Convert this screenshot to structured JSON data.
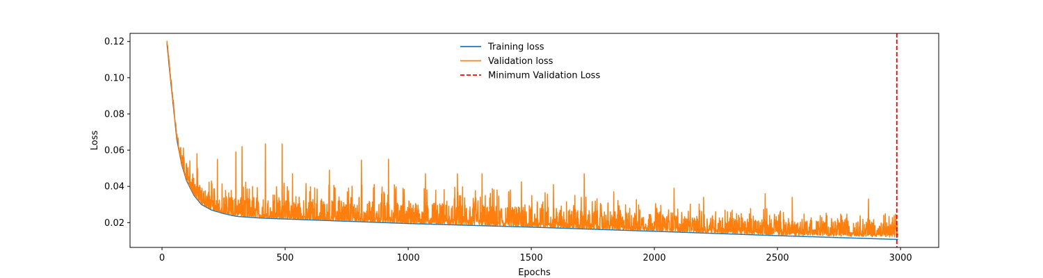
{
  "chart_data": {
    "type": "line",
    "xlabel": "Epochs",
    "ylabel": "Loss",
    "xlim": [
      -130,
      3155
    ],
    "ylim": [
      0.0063,
      0.1245
    ],
    "xticks": [
      0,
      500,
      1000,
      1500,
      2000,
      2500,
      3000
    ],
    "yticks": [
      0.02,
      0.04,
      0.06,
      0.08,
      0.1,
      0.12
    ],
    "ytick_labels": [
      "0.02",
      "0.04",
      "0.06",
      "0.08",
      "0.10",
      "0.12"
    ],
    "grid": false,
    "legend_position": "upper center",
    "series": [
      {
        "name": "Training loss",
        "color": "#1f77b4",
        "style": "solid",
        "x": [
          20,
          30,
          40,
          50,
          60,
          80,
          100,
          130,
          160,
          200,
          250,
          300,
          400,
          500,
          700,
          1000,
          1500,
          2000,
          2500,
          2990
        ],
        "y": [
          0.119,
          0.105,
          0.092,
          0.079,
          0.066,
          0.052,
          0.043,
          0.035,
          0.03,
          0.027,
          0.025,
          0.0235,
          0.0225,
          0.022,
          0.021,
          0.0195,
          0.0175,
          0.0152,
          0.0128,
          0.0107
        ]
      },
      {
        "name": "Validation loss",
        "color": "#ff7f0e",
        "style": "solid",
        "x": [
          20,
          30,
          40,
          50,
          60,
          80,
          100,
          130,
          160,
          200,
          250,
          300,
          400,
          500,
          700,
          1000,
          1500,
          2000,
          2500,
          2990
        ],
        "y": [
          0.119,
          0.106,
          0.093,
          0.08,
          0.067,
          0.053,
          0.044,
          0.036,
          0.031,
          0.028,
          0.026,
          0.025,
          0.024,
          0.023,
          0.022,
          0.021,
          0.019,
          0.0175,
          0.016,
          0.015
        ],
        "noise_amplitude": [
          0.01,
          0.013,
          0.012,
          0.008,
          0.006
        ],
        "spikes": [
          {
            "x": 142,
            "y": 0.058
          },
          {
            "x": 225,
            "y": 0.055
          },
          {
            "x": 300,
            "y": 0.059
          },
          {
            "x": 325,
            "y": 0.062
          },
          {
            "x": 420,
            "y": 0.0635
          },
          {
            "x": 488,
            "y": 0.0635
          },
          {
            "x": 530,
            "y": 0.047
          },
          {
            "x": 680,
            "y": 0.049
          },
          {
            "x": 810,
            "y": 0.0545
          },
          {
            "x": 920,
            "y": 0.055
          },
          {
            "x": 1070,
            "y": 0.047
          },
          {
            "x": 1200,
            "y": 0.047
          },
          {
            "x": 1300,
            "y": 0.047
          },
          {
            "x": 1460,
            "y": 0.0425
          },
          {
            "x": 1590,
            "y": 0.041
          },
          {
            "x": 1715,
            "y": 0.047
          },
          {
            "x": 1835,
            "y": 0.037
          },
          {
            "x": 2080,
            "y": 0.039
          },
          {
            "x": 2200,
            "y": 0.034
          },
          {
            "x": 2450,
            "y": 0.036
          },
          {
            "x": 2560,
            "y": 0.034
          },
          {
            "x": 2870,
            "y": 0.033
          }
        ]
      },
      {
        "name": "Minimum Validation Loss",
        "color": "#ff0000",
        "style": "dashed",
        "x_value": 2985
      }
    ]
  }
}
